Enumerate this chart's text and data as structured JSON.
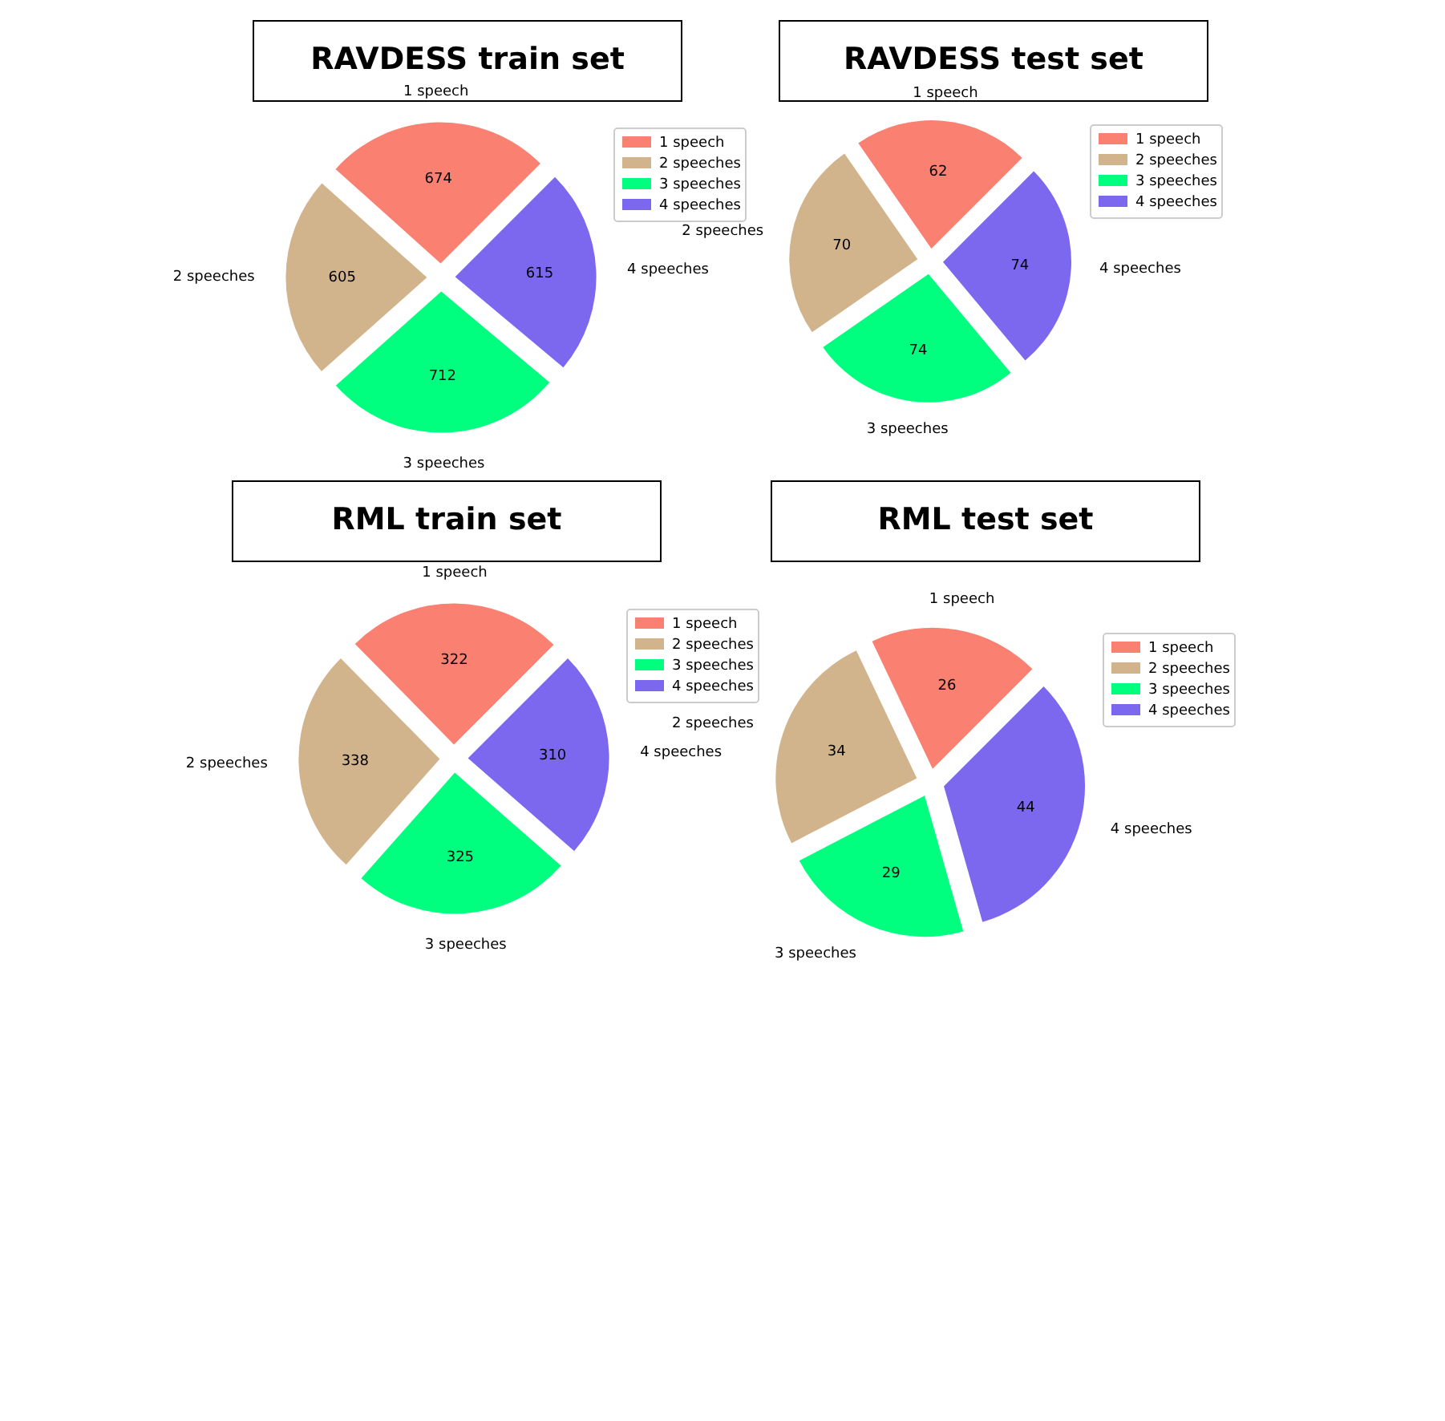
{
  "chart_data": [
    {
      "type": "pie",
      "title": "RAVDESS train set",
      "categories": [
        "1 speech",
        "2 speeches",
        "3 speeches",
        "4 speeches"
      ],
      "values": [
        674,
        605,
        712,
        615
      ],
      "colors": [
        "#fa8072",
        "#d2b48c",
        "#00ff7f",
        "#7b68ee"
      ],
      "data_labels": true,
      "legend": "top right"
    },
    {
      "type": "pie",
      "title": "RAVDESS test set",
      "categories": [
        "1 speech",
        "2 speeches",
        "3 speeches",
        "4 speeches"
      ],
      "values": [
        62,
        70,
        74,
        74
      ],
      "colors": [
        "#fa8072",
        "#d2b48c",
        "#00ff7f",
        "#7b68ee"
      ],
      "data_labels": true,
      "legend": "top right"
    },
    {
      "type": "pie",
      "title": "RML train set",
      "categories": [
        "1 speech",
        "2 speeches",
        "3 speeches",
        "4 speeches"
      ],
      "values": [
        322,
        338,
        325,
        310
      ],
      "colors": [
        "#fa8072",
        "#d2b48c",
        "#00ff7f",
        "#7b68ee"
      ],
      "data_labels": true,
      "legend": "top right"
    },
    {
      "type": "pie",
      "title": "RML test set",
      "categories": [
        "1 speech",
        "2 speeches",
        "3 speeches",
        "4 speeches"
      ],
      "values": [
        26,
        34,
        29,
        44
      ],
      "colors": [
        "#fa8072",
        "#d2b48c",
        "#00ff7f",
        "#7b68ee"
      ],
      "data_labels": true,
      "legend": "top right"
    }
  ]
}
